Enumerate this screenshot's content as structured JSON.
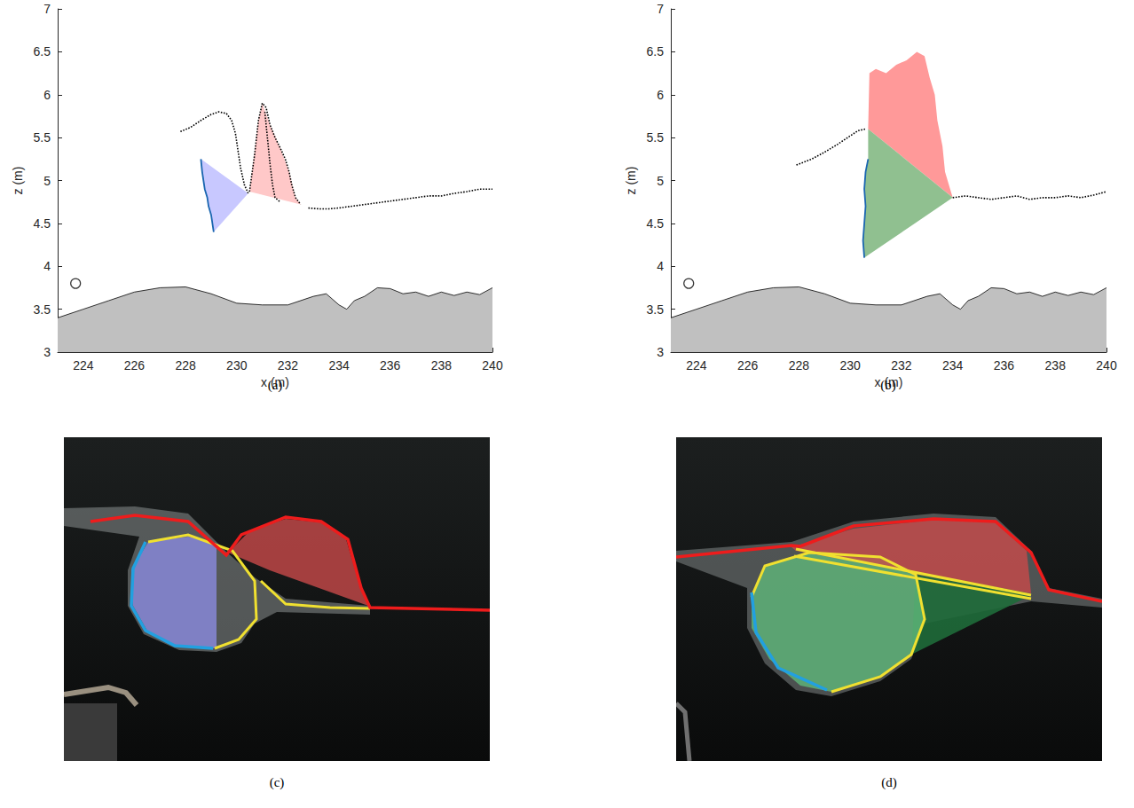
{
  "chart_data": [
    {
      "type": "line",
      "label": "(a)",
      "xlabel": "x (m)",
      "ylabel": "z (m)",
      "xlim": [
        223,
        240
      ],
      "xticks": [
        224,
        226,
        228,
        230,
        232,
        234,
        236,
        238,
        240
      ],
      "ylim": [
        3,
        7
      ],
      "yticks": [
        3,
        3.5,
        4,
        4.5,
        5,
        5.5,
        6,
        6.5,
        7
      ],
      "grid": false,
      "series": [
        {
          "type": "area",
          "color": "#c0c0c0",
          "values": [
            [
              223,
              3.4
            ],
            [
              224,
              3.5
            ],
            [
              225,
              3.6
            ],
            [
              226,
              3.7
            ],
            [
              227,
              3.75
            ],
            [
              228,
              3.76
            ],
            [
              229,
              3.68
            ],
            [
              230,
              3.57
            ],
            [
              231,
              3.55
            ],
            [
              232,
              3.55
            ],
            [
              233,
              3.65
            ],
            [
              233.5,
              3.68
            ],
            [
              234,
              3.55
            ],
            [
              234.3,
              3.5
            ],
            [
              234.6,
              3.6
            ],
            [
              235,
              3.65
            ],
            [
              235.5,
              3.75
            ],
            [
              236,
              3.74
            ],
            [
              236.5,
              3.68
            ],
            [
              237,
              3.7
            ],
            [
              237.5,
              3.65
            ],
            [
              238,
              3.7
            ],
            [
              238.5,
              3.66
            ],
            [
              239,
              3.7
            ],
            [
              239.5,
              3.67
            ],
            [
              240,
              3.75
            ]
          ]
        },
        {
          "type": "polygon",
          "color": "#c8c8ff",
          "values": [
            [
              228.6,
              5.25
            ],
            [
              228.65,
              5.1
            ],
            [
              228.7,
              5.0
            ],
            [
              228.75,
              4.9
            ],
            [
              228.85,
              4.8
            ],
            [
              228.9,
              4.7
            ],
            [
              229.0,
              4.6
            ],
            [
              229.05,
              4.5
            ],
            [
              229.1,
              4.4
            ],
            [
              230.45,
              4.85
            ]
          ]
        },
        {
          "type": "polygon",
          "color": "#ffc8c8",
          "values": [
            [
              230.5,
              4.87
            ],
            [
              230.85,
              5.7
            ],
            [
              231,
              5.9
            ],
            [
              231.3,
              5.65
            ],
            [
              231.7,
              5.38
            ],
            [
              232.05,
              5.1
            ],
            [
              232.3,
              4.8
            ],
            [
              232.5,
              4.72
            ]
          ]
        },
        {
          "type": "line",
          "color": "#000000",
          "line_style": "dotted",
          "values": [
            [
              227.8,
              5.57
            ],
            [
              228.2,
              5.62
            ],
            [
              228.6,
              5.7
            ],
            [
              229,
              5.77
            ],
            [
              229.3,
              5.8
            ],
            [
              229.6,
              5.78
            ],
            [
              229.8,
              5.7
            ],
            [
              229.95,
              5.55
            ],
            [
              230.05,
              5.35
            ],
            [
              230.15,
              5.15
            ],
            [
              230.3,
              4.95
            ],
            [
              230.45,
              4.85
            ]
          ]
        },
        {
          "type": "line",
          "color": "#000000",
          "line_style": "dotted",
          "values": [
            [
              230.5,
              4.87
            ],
            [
              230.7,
              5.3
            ],
            [
              230.85,
              5.7
            ],
            [
              231,
              5.9
            ],
            [
              231.15,
              5.85
            ],
            [
              231.3,
              5.65
            ],
            [
              231.5,
              5.5
            ],
            [
              231.7,
              5.38
            ],
            [
              231.9,
              5.25
            ],
            [
              232.05,
              5.1
            ],
            [
              232.15,
              4.95
            ],
            [
              232.3,
              4.8
            ],
            [
              232.5,
              4.72
            ]
          ]
        },
        {
          "type": "line",
          "color": "#000000",
          "line_style": "dotted",
          "values": [
            [
              231.1,
              5.8
            ],
            [
              231.2,
              5.5
            ],
            [
              231.3,
              5.2
            ],
            [
              231.4,
              4.95
            ],
            [
              231.5,
              4.8
            ],
            [
              231.7,
              4.75
            ]
          ]
        },
        {
          "type": "line",
          "color": "#000000",
          "line_style": "dotted",
          "values": [
            [
              232.8,
              4.68
            ],
            [
              233.2,
              4.67
            ],
            [
              233.6,
              4.67
            ],
            [
              234,
              4.68
            ],
            [
              234.5,
              4.7
            ],
            [
              235,
              4.72
            ],
            [
              235.5,
              4.74
            ],
            [
              236,
              4.76
            ],
            [
              236.5,
              4.78
            ],
            [
              237,
              4.8
            ],
            [
              237.5,
              4.82
            ],
            [
              238,
              4.82
            ],
            [
              238.5,
              4.85
            ],
            [
              239,
              4.87
            ],
            [
              239.5,
              4.9
            ],
            [
              240,
              4.9
            ]
          ]
        },
        {
          "type": "line",
          "color": "#1a66b0",
          "line_style": "solid",
          "values": [
            [
              228.6,
              5.25
            ],
            [
              228.65,
              5.1
            ],
            [
              228.7,
              5.0
            ],
            [
              228.75,
              4.9
            ],
            [
              228.85,
              4.8
            ],
            [
              228.9,
              4.7
            ],
            [
              229.0,
              4.6
            ],
            [
              229.05,
              4.5
            ],
            [
              229.1,
              4.4
            ]
          ]
        },
        {
          "type": "scatter",
          "color": "#000000",
          "marker": "open_circle",
          "values": [
            [
              223.7,
              3.8
            ]
          ]
        }
      ]
    },
    {
      "type": "line",
      "label": "(b)",
      "xlabel": "x (m)",
      "ylabel": "z (m)",
      "xlim": [
        223,
        240
      ],
      "xticks": [
        224,
        226,
        228,
        230,
        232,
        234,
        236,
        238,
        240
      ],
      "ylim": [
        3,
        7
      ],
      "yticks": [
        3,
        3.5,
        4,
        4.5,
        5,
        5.5,
        6,
        6.5,
        7
      ],
      "grid": false,
      "series": [
        {
          "type": "area",
          "color": "#c0c0c0",
          "values": [
            [
              223,
              3.4
            ],
            [
              224,
              3.5
            ],
            [
              225,
              3.6
            ],
            [
              226,
              3.7
            ],
            [
              227,
              3.75
            ],
            [
              228,
              3.76
            ],
            [
              229,
              3.68
            ],
            [
              230,
              3.57
            ],
            [
              231,
              3.55
            ],
            [
              232,
              3.55
            ],
            [
              233,
              3.65
            ],
            [
              233.5,
              3.68
            ],
            [
              234,
              3.55
            ],
            [
              234.3,
              3.5
            ],
            [
              234.6,
              3.6
            ],
            [
              235,
              3.65
            ],
            [
              235.5,
              3.75
            ],
            [
              236,
              3.74
            ],
            [
              236.5,
              3.68
            ],
            [
              237,
              3.7
            ],
            [
              237.5,
              3.65
            ],
            [
              238,
              3.7
            ],
            [
              238.5,
              3.66
            ],
            [
              239,
              3.7
            ],
            [
              239.5,
              3.67
            ],
            [
              240,
              3.75
            ]
          ]
        },
        {
          "type": "polygon",
          "color": "#ff9999",
          "values": [
            [
              230.7,
              5.6
            ],
            [
              230.75,
              6.25
            ],
            [
              231,
              6.3
            ],
            [
              231.4,
              6.25
            ],
            [
              231.8,
              6.35
            ],
            [
              232.2,
              6.4
            ],
            [
              232.6,
              6.5
            ],
            [
              232.9,
              6.45
            ],
            [
              233.1,
              6.2
            ],
            [
              233.3,
              6.0
            ],
            [
              233.4,
              5.7
            ],
            [
              233.6,
              5.4
            ],
            [
              233.7,
              5.1
            ],
            [
              233.9,
              4.9
            ],
            [
              234,
              4.8
            ]
          ]
        },
        {
          "type": "polygon",
          "color": "#90c090",
          "values": [
            [
              230.7,
              5.6
            ],
            [
              234,
              4.8
            ],
            [
              230.55,
              4.1
            ],
            [
              230.5,
              4.3
            ],
            [
              230.55,
              4.5
            ],
            [
              230.6,
              4.7
            ],
            [
              230.55,
              4.9
            ],
            [
              230.6,
              5.1
            ],
            [
              230.7,
              5.25
            ]
          ]
        },
        {
          "type": "line",
          "color": "#000000",
          "line_style": "dotted",
          "values": [
            [
              227.9,
              5.18
            ],
            [
              228.5,
              5.25
            ],
            [
              229,
              5.33
            ],
            [
              229.5,
              5.42
            ],
            [
              230,
              5.52
            ],
            [
              230.3,
              5.58
            ],
            [
              230.6,
              5.6
            ]
          ]
        },
        {
          "type": "line",
          "color": "#000000",
          "line_style": "dotted",
          "values": [
            [
              234,
              4.8
            ],
            [
              234.5,
              4.82
            ],
            [
              235,
              4.8
            ],
            [
              235.5,
              4.78
            ],
            [
              236,
              4.8
            ],
            [
              236.5,
              4.82
            ],
            [
              237,
              4.78
            ],
            [
              237.5,
              4.8
            ],
            [
              238,
              4.8
            ],
            [
              238.5,
              4.82
            ],
            [
              239,
              4.8
            ],
            [
              239.5,
              4.83
            ],
            [
              240,
              4.87
            ]
          ]
        },
        {
          "type": "line",
          "color": "#1a66b0",
          "line_style": "solid",
          "values": [
            [
              230.7,
              5.25
            ],
            [
              230.6,
              5.1
            ],
            [
              230.55,
              4.9
            ],
            [
              230.6,
              4.7
            ],
            [
              230.55,
              4.5
            ],
            [
              230.5,
              4.3
            ],
            [
              230.55,
              4.1
            ]
          ]
        },
        {
          "type": "scatter",
          "color": "#000000",
          "marker": "open_circle",
          "values": [
            [
              223.7,
              3.8
            ]
          ]
        }
      ]
    }
  ],
  "images": [
    {
      "label": "(c)"
    },
    {
      "label": "(d)"
    }
  ]
}
